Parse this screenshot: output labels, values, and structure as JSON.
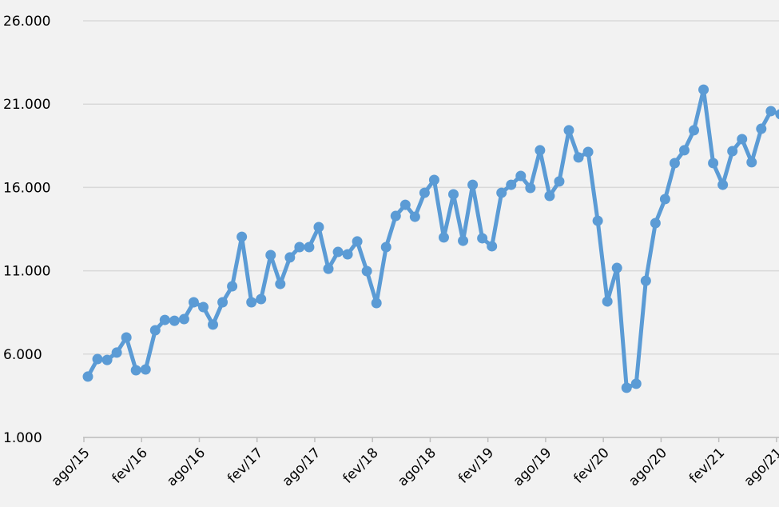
{
  "chart_data": {
    "type": "line",
    "categories": [
      "ago/15",
      null,
      null,
      null,
      null,
      null,
      "fev/16",
      null,
      null,
      null,
      null,
      null,
      "ago/16",
      null,
      null,
      null,
      null,
      null,
      "fev/17",
      null,
      null,
      null,
      null,
      null,
      "ago/17",
      null,
      null,
      null,
      null,
      null,
      "fev/18",
      null,
      null,
      null,
      null,
      null,
      "ago/18",
      null,
      null,
      null,
      null,
      null,
      "fev/19",
      null,
      null,
      null,
      null,
      null,
      "ago/19",
      null,
      null,
      null,
      null,
      null,
      "fev/20",
      null,
      null,
      null,
      null,
      null,
      "ago/20",
      null,
      null,
      null,
      null,
      null,
      "fev/21",
      null,
      null,
      null,
      null,
      null,
      "ago/21"
    ],
    "series": [
      {
        "color": "#5b9bd5",
        "values": [
          4650,
          5700,
          5650,
          6090,
          7000,
          5030,
          5080,
          7430,
          8050,
          8000,
          8100,
          9110,
          8820,
          7770,
          9110,
          10070,
          13040,
          9110,
          9300,
          11940,
          10210,
          11800,
          12420,
          12420,
          13620,
          11120,
          12130,
          11990,
          12760,
          10980,
          9060,
          12420,
          14290,
          14960,
          14240,
          15680,
          16450,
          13000,
          15590,
          12800,
          16160,
          12950,
          12470,
          15680,
          16160,
          16690,
          15970,
          18230,
          15490,
          16360,
          19430,
          17800,
          18130,
          14000,
          9160,
          11170,
          3980,
          4220,
          10400,
          13860,
          15300,
          17460,
          18230,
          19430,
          21870,
          17460,
          16160,
          18180,
          18900,
          17510,
          19520,
          20580,
          20390
        ]
      }
    ],
    "ylim": [
      1000,
      26000
    ],
    "yticks": [
      {
        "value": 1000,
        "label": "1.000"
      },
      {
        "value": 6000,
        "label": "6.000"
      },
      {
        "value": 11000,
        "label": "11.000"
      },
      {
        "value": 16000,
        "label": "16.000"
      },
      {
        "value": 21000,
        "label": "21.000"
      },
      {
        "value": 26000,
        "label": "26.000"
      }
    ],
    "grid": true
  }
}
